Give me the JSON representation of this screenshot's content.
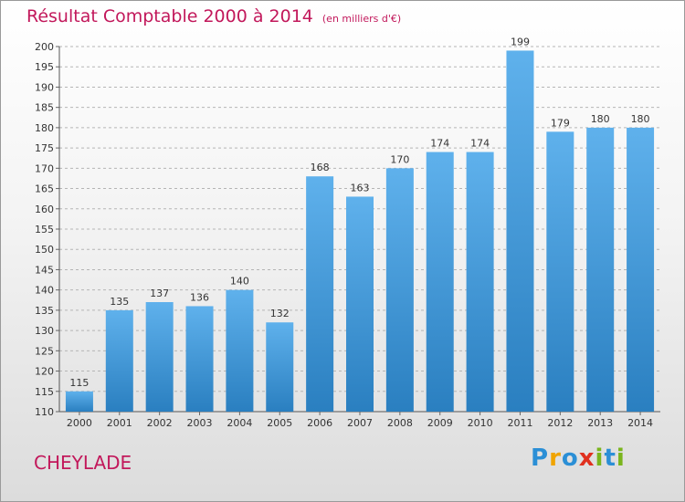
{
  "title": "Résultat Comptable 2000 à 2014",
  "subtitle": "(en milliers d'€)",
  "place": "CHEYLADE",
  "logo": {
    "text": "Proxiti",
    "letters": [
      {
        "ch": "P",
        "color": "#2b8fd6"
      },
      {
        "ch": "r",
        "color": "#f0a400"
      },
      {
        "ch": "o",
        "color": "#2b8fd6"
      },
      {
        "ch": "x",
        "color": "#e0301e"
      },
      {
        "ch": "i",
        "color": "#7ab51d"
      },
      {
        "ch": "t",
        "color": "#2b8fd6"
      },
      {
        "ch": "i",
        "color": "#7ab51d"
      }
    ]
  },
  "colors": {
    "bar_top": "#5fb1ec",
    "bar_bottom": "#2a7fc0",
    "title": "#c2185b",
    "grid": "#b5b5b5"
  },
  "chart_data": {
    "type": "bar",
    "title": "Résultat Comptable 2000 à 2014",
    "subtitle": "(en milliers d'€)",
    "xlabel": "",
    "ylabel": "",
    "categories": [
      "2000",
      "2001",
      "2002",
      "2003",
      "2004",
      "2005",
      "2006",
      "2007",
      "2008",
      "2009",
      "2010",
      "2011",
      "2012",
      "2013",
      "2014"
    ],
    "values": [
      115,
      135,
      137,
      136,
      140,
      132,
      168,
      163,
      170,
      174,
      174,
      199,
      179,
      180,
      180
    ],
    "ylim": [
      110,
      200
    ],
    "yticks": [
      110,
      115,
      120,
      125,
      130,
      135,
      140,
      145,
      150,
      155,
      160,
      165,
      170,
      175,
      180,
      185,
      190,
      195,
      200
    ],
    "grid": "horizontal dashed",
    "legend": "none"
  }
}
